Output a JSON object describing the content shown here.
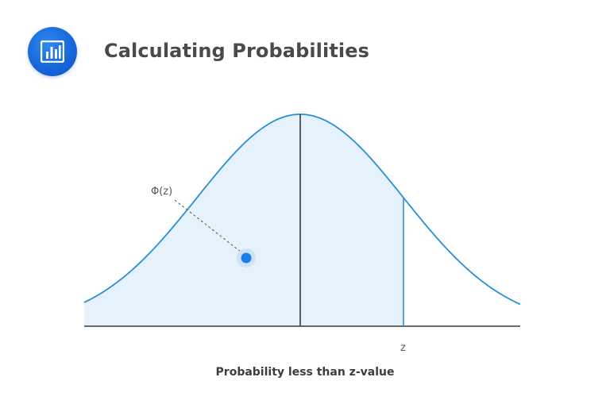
{
  "header": {
    "title": "Calculating Probabilities",
    "logo_icon": "bar-chart-icon"
  },
  "diagram": {
    "type": "normal-distribution",
    "shaded_region": "left-of-z",
    "phi_label": "Φ(z)",
    "z_label": "z",
    "z_value": 1.0,
    "caption": "Probability less than z-value"
  },
  "colors": {
    "accent": "#1a6fe0",
    "curve": "#2a8fd4",
    "shade": "#e5f2fb",
    "axis": "#3a3a3a",
    "marker": "#1a7de8"
  }
}
